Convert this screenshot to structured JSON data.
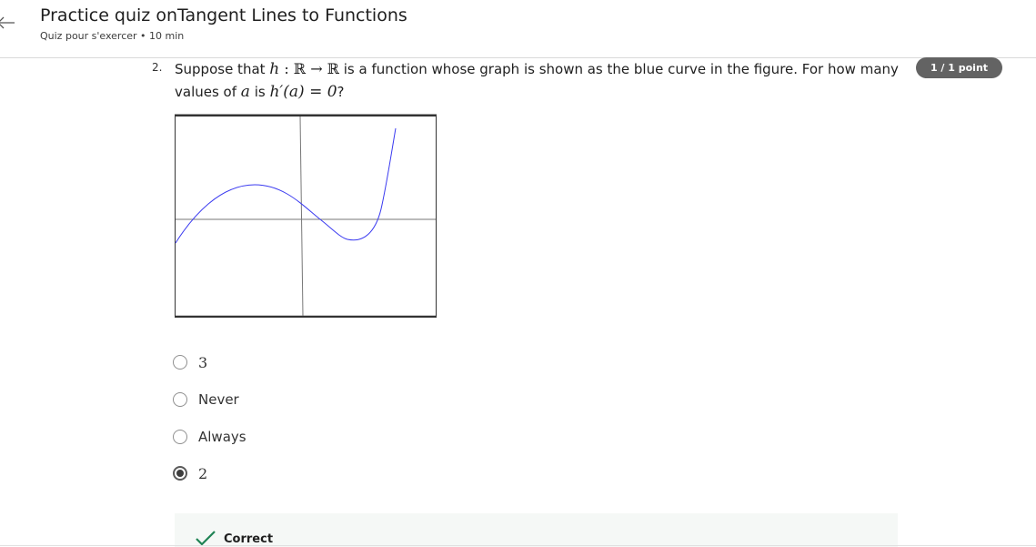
{
  "header": {
    "title": "Practice quiz onTangent Lines to Functions",
    "subtitle": "Quiz pour s'exercer • 10 min"
  },
  "question": {
    "number": "2.",
    "text_part1": "Suppose that ",
    "math_h": "h",
    "math_map": " : ℝ → ℝ",
    "text_part2": " is a function whose graph is shown as the blue curve in the figure. For how many values of ",
    "math_a": "a",
    "text_part3": " is ",
    "math_expr": "h′(a) = 0",
    "text_part4": "?",
    "score": "1 / 1 point"
  },
  "options": [
    {
      "label": "3",
      "selected": false
    },
    {
      "label": "Never",
      "selected": false
    },
    {
      "label": "Always",
      "selected": false
    },
    {
      "label": "2",
      "selected": true
    }
  ],
  "feedback": {
    "status": "Correct"
  },
  "colors": {
    "curve": "#3a3af0",
    "badge": "#636363",
    "check": "#1f8354"
  }
}
